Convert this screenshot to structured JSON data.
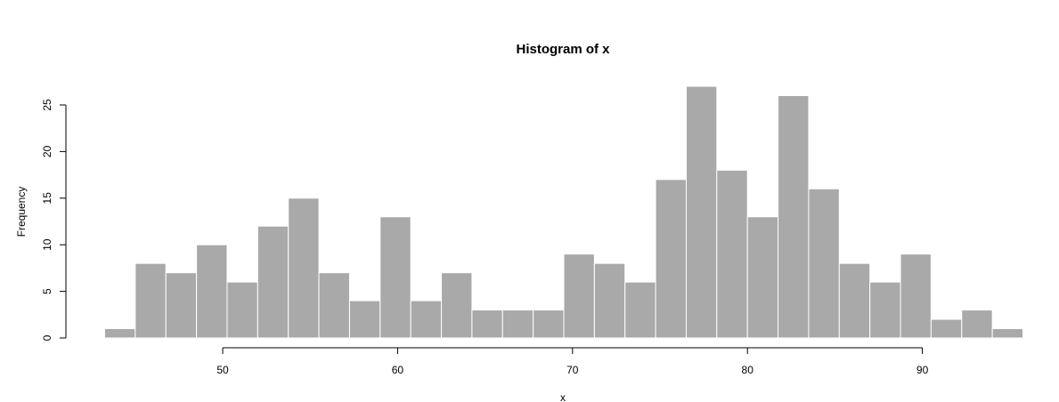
{
  "chart_data": {
    "type": "bar",
    "title": "Histogram of x",
    "xlabel": "x",
    "ylabel": "Frequency",
    "bin_width": 1.75,
    "x_start": 43.25,
    "values": [
      1,
      8,
      7,
      10,
      6,
      12,
      15,
      7,
      4,
      13,
      4,
      7,
      3,
      3,
      3,
      9,
      8,
      6,
      17,
      27,
      18,
      13,
      26,
      16,
      8,
      6,
      9,
      2,
      3,
      1
    ],
    "xlim": [
      43.25,
      95.75
    ],
    "ylim": [
      0,
      25
    ],
    "x_ticks": [
      50,
      60,
      70,
      80,
      90
    ],
    "x_tick_labels": [
      "50",
      "60",
      "70",
      "80",
      "90"
    ],
    "y_ticks": [
      0,
      5,
      10,
      15,
      20,
      25
    ],
    "y_tick_labels": [
      "0",
      "5",
      "10",
      "15",
      "20",
      "25"
    ],
    "grid": false,
    "bar_color": "#a9a9a9",
    "bar_border_color": "#ffffff"
  }
}
